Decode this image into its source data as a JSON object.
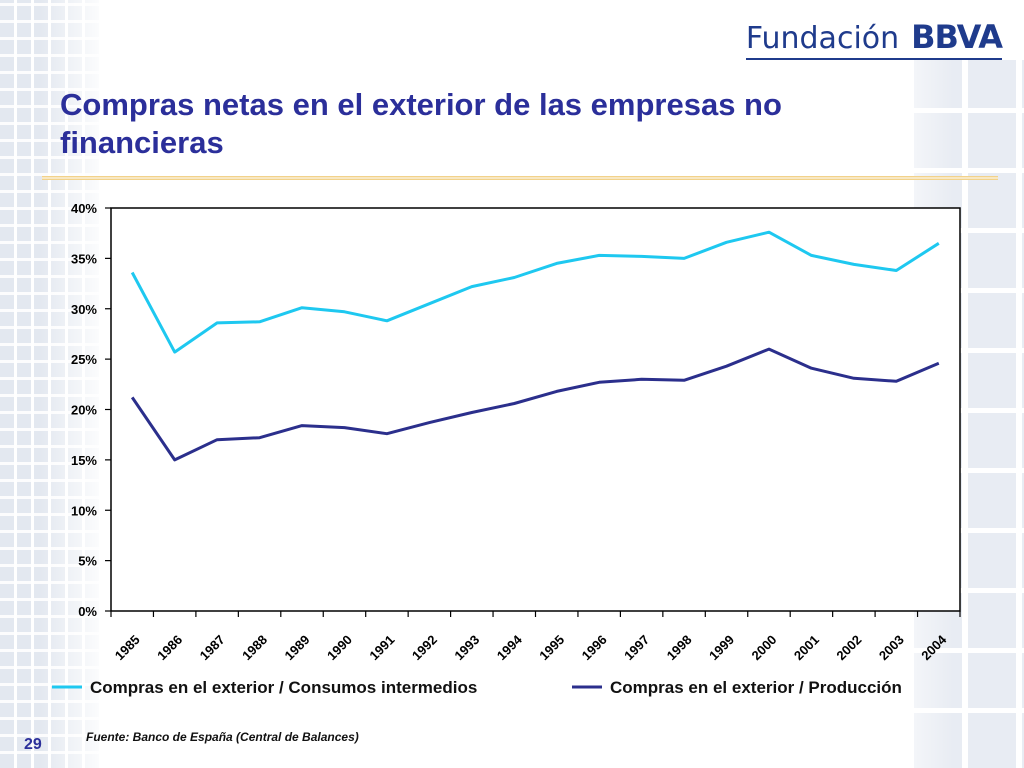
{
  "logo": {
    "text1": "Fundación",
    "text2": "BBVA"
  },
  "slide": {
    "title": "Compras netas en el exterior de las empresas no financieras",
    "page_number": "29",
    "source": "Fuente:  Banco de España (Central de Balances)"
  },
  "colors": {
    "series1": "#1ec8f0",
    "series2": "#2b2f8c",
    "title": "#2b2f9a",
    "accent_rule": "#f2d28a"
  },
  "chart_data": {
    "type": "line",
    "title": "",
    "xlabel": "",
    "ylabel": "",
    "ylim": [
      0,
      40
    ],
    "y_ticks": [
      "0%",
      "5%",
      "10%",
      "15%",
      "20%",
      "25%",
      "30%",
      "35%",
      "40%"
    ],
    "categories": [
      "1985",
      "1986",
      "1987",
      "1988",
      "1989",
      "1990",
      "1991",
      "1992",
      "1993",
      "1994",
      "1995",
      "1996",
      "1997",
      "1998",
      "1999",
      "2000",
      "2001",
      "2002",
      "2003",
      "2004"
    ],
    "series": [
      {
        "name": "Compras en el exterior / Consumos intermedios",
        "values": [
          33.6,
          25.7,
          28.6,
          28.7,
          30.1,
          29.7,
          28.8,
          30.5,
          32.2,
          33.1,
          34.5,
          35.3,
          35.2,
          35.0,
          36.6,
          37.6,
          35.3,
          34.4,
          33.8,
          36.5
        ]
      },
      {
        "name": "Compras en el exterior / Producción",
        "values": [
          21.2,
          15.0,
          17.0,
          17.2,
          18.4,
          18.2,
          17.6,
          18.7,
          19.7,
          20.6,
          21.8,
          22.7,
          23.0,
          22.9,
          24.3,
          26.0,
          24.1,
          23.1,
          22.8,
          24.6
        ]
      }
    ],
    "legend_position": "bottom"
  }
}
